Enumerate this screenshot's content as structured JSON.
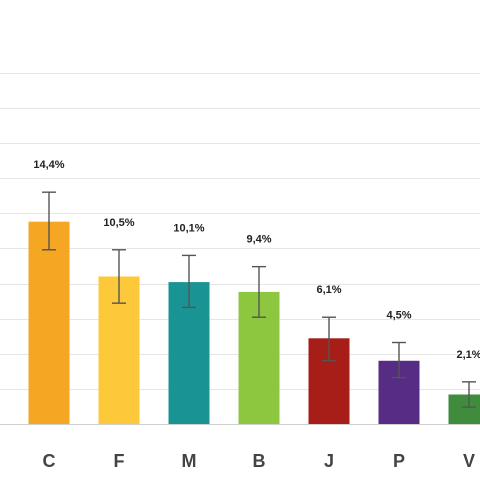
{
  "chart_data": {
    "type": "bar",
    "categories": [
      "C",
      "F",
      "M",
      "B",
      "J",
      "P",
      "V"
    ],
    "values": [
      14.4,
      10.5,
      10.1,
      9.4,
      6.1,
      4.5,
      2.1
    ],
    "value_labels": [
      "14,4%",
      "10,5%",
      "10,1%",
      "9,4%",
      "6,1%",
      "4,5%",
      "2,1%"
    ],
    "error_low": [
      12.4,
      8.6,
      8.3,
      7.6,
      4.5,
      3.3,
      1.2
    ],
    "error_high": [
      16.5,
      12.4,
      12.0,
      11.2,
      7.6,
      5.8,
      3.0
    ],
    "colors": [
      "#f5a623",
      "#fdc83a",
      "#1a9395",
      "#8dc63f",
      "#a71d18",
      "#562c85",
      "#3f8c3d"
    ],
    "ylim": [
      0,
      27
    ],
    "grid_step": 2.5,
    "grid": true,
    "title": "",
    "xlabel": "",
    "ylabel": ""
  }
}
